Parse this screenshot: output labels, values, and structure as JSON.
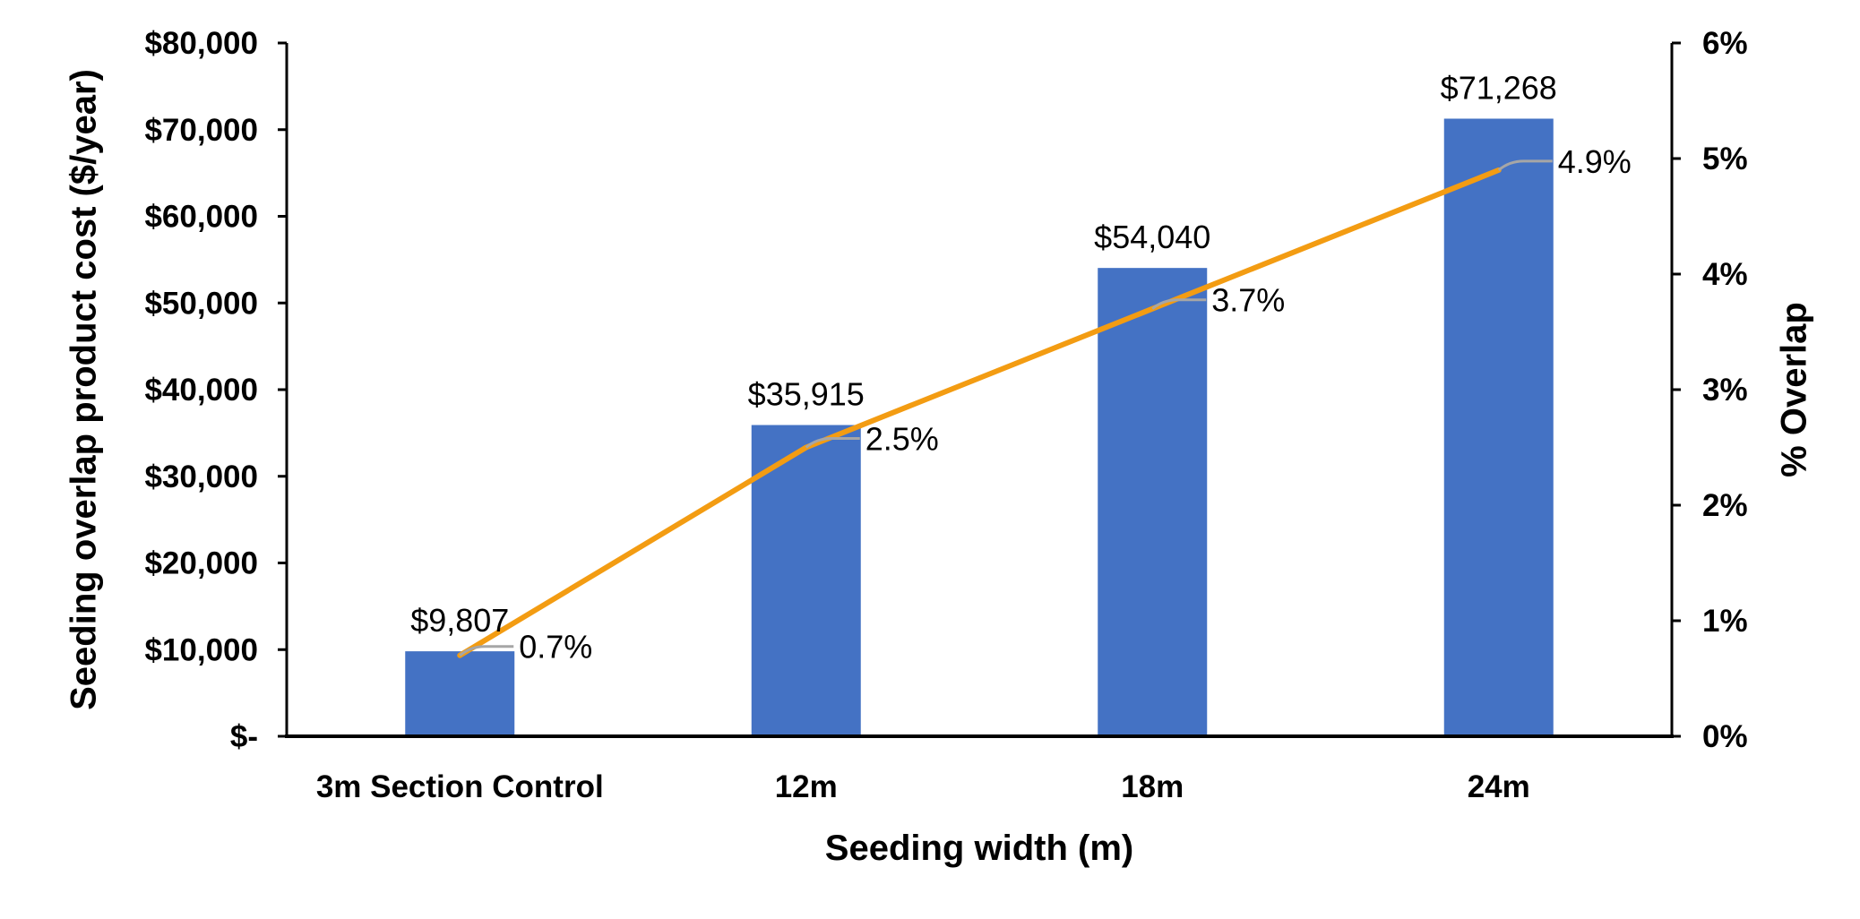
{
  "chart_data": {
    "type": "bar",
    "categories": [
      "3m Section Control",
      "12m",
      "18m",
      "24m"
    ],
    "xlabel": "Seeding width (m)",
    "ylabel": "Seeding overlap product cost ($/year)",
    "y2label": "% Overlap",
    "ylim": [
      0,
      80000
    ],
    "y2lim": [
      0,
      6
    ],
    "yticks": [
      "$-",
      "$10,000",
      "$20,000",
      "$30,000",
      "$40,000",
      "$50,000",
      "$60,000",
      "$70,000",
      "$80,000"
    ],
    "y2ticks": [
      "0%",
      "1%",
      "2%",
      "3%",
      "4%",
      "5%",
      "6%"
    ],
    "grid": false,
    "series": [
      {
        "type": "bar",
        "axis": "left",
        "color": "#4472C4",
        "values": [
          9807,
          35915,
          54040,
          71268
        ],
        "labels": [
          "$9,807",
          "$35,915",
          "$54,040",
          "$71,268"
        ]
      },
      {
        "type": "line",
        "axis": "right",
        "color": "#F39C12",
        "values": [
          0.7,
          2.5,
          3.7,
          4.9
        ],
        "labels": [
          "0.7%",
          "2.5%",
          "3.7%",
          "4.9%"
        ]
      }
    ]
  }
}
